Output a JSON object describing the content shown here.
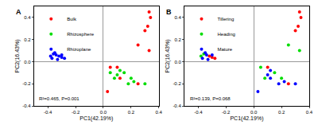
{
  "chart_data": [
    {
      "type": "scatter",
      "label": "A",
      "x_label": "PC1(42.19%)",
      "y_label": "PC2(16.43%)",
      "xlim": [
        -0.5,
        0.4
      ],
      "ylim": [
        -0.4,
        0.5
      ],
      "xticks": [
        -0.4,
        -0.2,
        {
          "value": 0,
          "label": "0.0"
        },
        0.2,
        0.4
      ],
      "yticks": [
        -0.4,
        -0.2,
        {
          "value": 0,
          "label": "0.0"
        },
        0.2,
        0.4
      ],
      "legend": "upper left",
      "grid": false,
      "marker": "circle",
      "annotations": [
        "R²=0.465, P=0.001"
      ],
      "series": [
        {
          "name": "Bulk",
          "color": "#ff0000",
          "x": [
            0.33,
            0.34,
            0.32,
            0.3,
            0.25,
            0.33,
            0.05,
            0.1,
            0.25,
            0.03,
            0.12
          ],
          "y": [
            0.45,
            0.4,
            0.32,
            0.28,
            0.15,
            0.1,
            -0.05,
            -0.05,
            -0.2,
            -0.27,
            -0.15
          ]
        },
        {
          "name": "Rhizosphere",
          "color": "#00dd00",
          "x": [
            0.05,
            0.1,
            0.15,
            0.2,
            0.08,
            0.18,
            0.22,
            0.3,
            0.12
          ],
          "y": [
            -0.1,
            -0.12,
            -0.1,
            -0.15,
            -0.15,
            -0.2,
            -0.18,
            -0.2,
            -0.08
          ]
        },
        {
          "name": "Rhizoplane",
          "color": "#0000ff",
          "x": [
            -0.38,
            -0.36,
            -0.34,
            -0.32,
            -0.3,
            -0.28,
            -0.33,
            -0.37,
            -0.35,
            -0.3
          ],
          "y": [
            0.05,
            0.07,
            0.06,
            0.05,
            0.04,
            0.03,
            0.02,
            0.03,
            0.08,
            0.06
          ]
        }
      ]
    },
    {
      "type": "scatter",
      "label": "B",
      "x_label": "PC1(42.19%)",
      "y_label": "PC2(16.43%)",
      "xlim": [
        -0.5,
        0.4
      ],
      "ylim": [
        -0.4,
        0.5
      ],
      "xticks": [
        -0.4,
        -0.2,
        {
          "value": 0,
          "label": "0.0"
        },
        0.2,
        0.4
      ],
      "yticks": [
        -0.4,
        -0.2,
        {
          "value": 0,
          "label": "0.0"
        },
        0.2,
        0.4
      ],
      "legend": "upper left",
      "grid": false,
      "marker": "circle",
      "annotations": [
        "R²=0.139, P=0.068"
      ],
      "series": [
        {
          "name": "Tillering",
          "color": "#ff0000",
          "x": [
            0.33,
            0.34,
            0.32,
            0.3,
            -0.32,
            -0.3,
            -0.28,
            0.1,
            0.25
          ],
          "y": [
            0.45,
            0.4,
            0.32,
            0.28,
            0.05,
            0.04,
            0.03,
            -0.05,
            -0.2
          ]
        },
        {
          "name": "Heading",
          "color": "#00dd00",
          "x": [
            0.25,
            0.33,
            -0.38,
            0.05,
            0.15,
            0.2,
            -0.36,
            0.08
          ],
          "y": [
            0.15,
            0.1,
            0.05,
            -0.05,
            -0.1,
            -0.15,
            0.07,
            -0.15
          ]
        },
        {
          "name": "Mature",
          "color": "#0000ff",
          "x": [
            -0.34,
            -0.33,
            -0.37,
            0.03,
            0.12,
            0.18,
            0.22,
            0.12,
            -0.35,
            -0.3,
            0.3,
            0.1
          ],
          "y": [
            0.06,
            0.02,
            0.03,
            -0.27,
            -0.15,
            -0.2,
            -0.18,
            -0.08,
            0.08,
            0.06,
            -0.2,
            -0.12
          ]
        }
      ]
    }
  ]
}
